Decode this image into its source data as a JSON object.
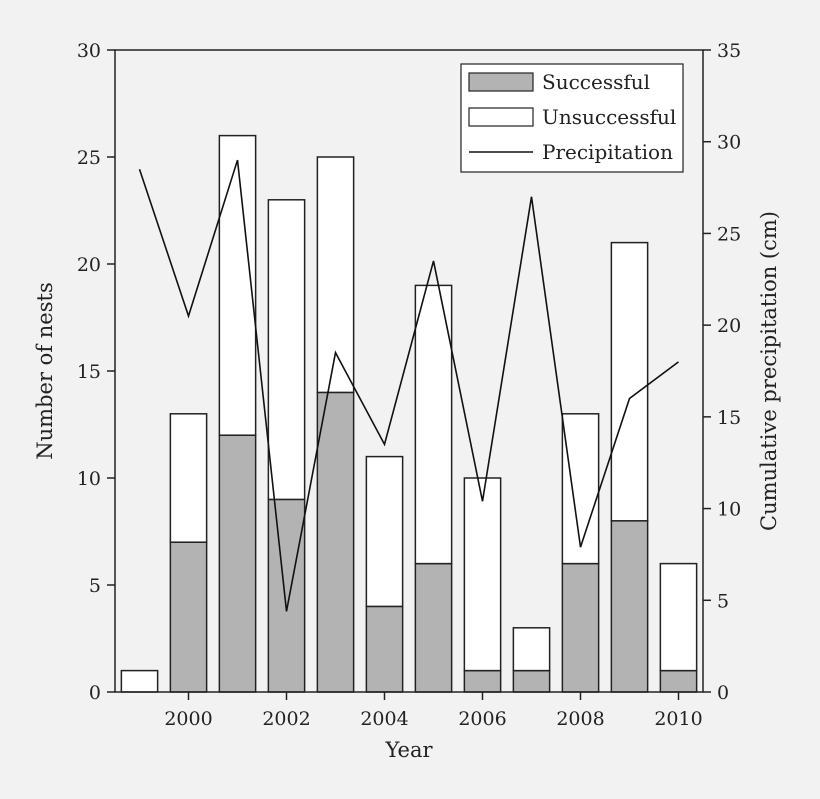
{
  "chart_data": {
    "type": "bar",
    "stacked": true,
    "categories": [
      1999,
      2000,
      2001,
      2002,
      2003,
      2004,
      2005,
      2006,
      2007,
      2008,
      2009,
      2010
    ],
    "series": [
      {
        "name": "Successful",
        "kind": "bar",
        "axis": "left",
        "color": "#b3b3b3",
        "values": [
          0,
          7,
          12,
          9,
          14,
          4,
          6,
          1,
          1,
          6,
          8,
          1
        ]
      },
      {
        "name": "Unsuccessful",
        "kind": "bar",
        "axis": "left",
        "color": "#ffffff",
        "values": [
          1,
          6,
          14,
          14,
          11,
          7,
          13,
          9,
          2,
          7,
          13,
          5
        ]
      },
      {
        "name": "Precipitation",
        "kind": "line",
        "axis": "right",
        "color": "#111111",
        "values": [
          28.5,
          20.5,
          29,
          4.4,
          18.5,
          13.5,
          23.5,
          10.4,
          27,
          7.9,
          16,
          18
        ]
      }
    ],
    "xlabel": "Year",
    "ylabel": "Number of nests",
    "y2label": "Cumulative precipitation (cm)",
    "xticks": [
      2000,
      2002,
      2004,
      2006,
      2008,
      2010
    ],
    "yticks": [
      0,
      5,
      10,
      15,
      20,
      25,
      30
    ],
    "y2ticks": [
      0,
      5,
      10,
      15,
      20,
      25,
      30,
      35
    ],
    "ylim": [
      0,
      30
    ],
    "y2lim": [
      0,
      35
    ],
    "legend_position": "top-right",
    "grid": false
  }
}
